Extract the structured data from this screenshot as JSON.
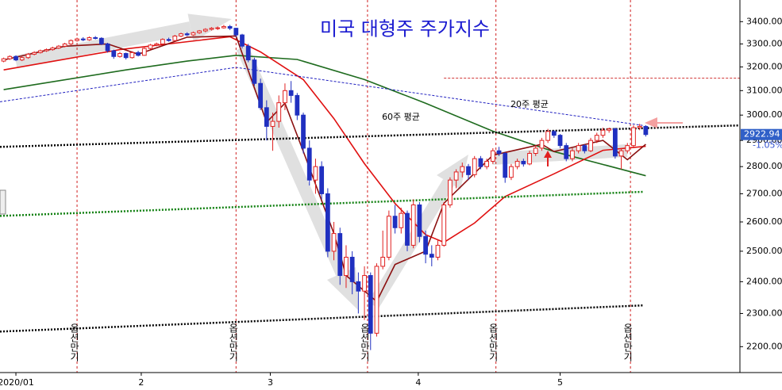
{
  "chart_data": {
    "type": "candlestick",
    "title": "미국 대형주 주가지수",
    "log_scale": true,
    "ylim": [
      2125,
      3500
    ],
    "yticks": [
      {
        "value": 3400,
        "label": "3400.00"
      },
      {
        "value": 3300,
        "label": "3300.00"
      },
      {
        "value": 3200,
        "label": "3200.00"
      },
      {
        "value": 3100,
        "label": "3100.00"
      },
      {
        "value": 3000,
        "label": "3000.00"
      },
      {
        "value": 2900,
        "label": "2900.00"
      },
      {
        "value": 2800,
        "label": "2800.00"
      },
      {
        "value": 2700,
        "label": "2700.00"
      },
      {
        "value": 2600,
        "label": "2600.00"
      },
      {
        "value": 2500,
        "label": "2500.00"
      },
      {
        "value": 2400,
        "label": "2400.00"
      },
      {
        "value": 2300,
        "label": "2300.00"
      },
      {
        "value": 2200,
        "label": "2200.00"
      }
    ],
    "xlim": [
      -0.6,
      120.4
    ],
    "xticks": [
      {
        "value": 2,
        "label": "2020/01"
      },
      {
        "value": 22.5,
        "label": "2"
      },
      {
        "value": 43.6,
        "label": "3"
      },
      {
        "value": 67.8,
        "label": "4"
      },
      {
        "value": 91,
        "label": "5"
      }
    ],
    "up_color": "#e02020",
    "down_color": "#2030c0",
    "candles": [
      [
        3225,
        3240,
        3220,
        3235
      ],
      [
        3235,
        3250,
        3230,
        3245
      ],
      [
        3245,
        3250,
        3225,
        3230
      ],
      [
        3230,
        3245,
        3225,
        3240
      ],
      [
        3240,
        3260,
        3235,
        3255
      ],
      [
        3255,
        3268,
        3250,
        3262
      ],
      [
        3262,
        3275,
        3258,
        3270
      ],
      [
        3270,
        3280,
        3265,
        3275
      ],
      [
        3275,
        3288,
        3270,
        3282
      ],
      [
        3282,
        3295,
        3278,
        3290
      ],
      [
        3290,
        3305,
        3285,
        3300
      ],
      [
        3300,
        3320,
        3295,
        3315
      ],
      [
        3315,
        3328,
        3310,
        3322
      ],
      [
        3322,
        3330,
        3312,
        3318
      ],
      [
        3318,
        3333,
        3314,
        3328
      ],
      [
        3328,
        3335,
        3320,
        3325
      ],
      [
        3325,
        3330,
        3295,
        3300
      ],
      [
        3300,
        3305,
        3262,
        3270
      ],
      [
        3270,
        3275,
        3235,
        3245
      ],
      [
        3245,
        3265,
        3240,
        3258
      ],
      [
        3258,
        3262,
        3232,
        3240
      ],
      [
        3240,
        3268,
        3236,
        3262
      ],
      [
        3262,
        3270,
        3245,
        3250
      ],
      [
        3250,
        3285,
        3248,
        3280
      ],
      [
        3280,
        3300,
        3275,
        3295
      ],
      [
        3295,
        3306,
        3290,
        3300
      ],
      [
        3300,
        3325,
        3296,
        3320
      ],
      [
        3320,
        3328,
        3310,
        3315
      ],
      [
        3315,
        3340,
        3312,
        3335
      ],
      [
        3335,
        3350,
        3330,
        3345
      ],
      [
        3345,
        3352,
        3335,
        3340
      ],
      [
        3340,
        3355,
        3336,
        3350
      ],
      [
        3350,
        3362,
        3345,
        3358
      ],
      [
        3358,
        3370,
        3352,
        3365
      ],
      [
        3365,
        3375,
        3360,
        3370
      ],
      [
        3370,
        3378,
        3362,
        3372
      ],
      [
        3372,
        3385,
        3368,
        3378
      ],
      [
        3378,
        3385,
        3362,
        3370
      ],
      [
        3370,
        3372,
        3330,
        3340
      ],
      [
        3340,
        3345,
        3280,
        3290
      ],
      [
        3290,
        3300,
        3220,
        3230
      ],
      [
        3230,
        3240,
        3120,
        3130
      ],
      [
        3130,
        3150,
        3020,
        3030
      ],
      [
        3030,
        3060,
        2900,
        2955
      ],
      [
        2955,
        3010,
        2860,
        2975
      ],
      [
        2975,
        3080,
        2950,
        3050
      ],
      [
        3050,
        3130,
        3020,
        3100
      ],
      [
        3100,
        3140,
        3050,
        3080
      ],
      [
        3080,
        3090,
        2980,
        3000
      ],
      [
        3000,
        3010,
        2850,
        2870
      ],
      [
        2870,
        2900,
        2730,
        2750
      ],
      [
        2750,
        2830,
        2700,
        2800
      ],
      [
        2800,
        2820,
        2680,
        2700
      ],
      [
        2700,
        2720,
        2480,
        2500
      ],
      [
        2500,
        2600,
        2470,
        2560
      ],
      [
        2560,
        2580,
        2390,
        2420
      ],
      [
        2420,
        2520,
        2380,
        2480
      ],
      [
        2480,
        2500,
        2360,
        2400
      ],
      [
        2400,
        2430,
        2300,
        2370
      ],
      [
        2370,
        2450,
        2280,
        2420
      ],
      [
        2420,
        2430,
        2190,
        2240
      ],
      [
        2240,
        2460,
        2230,
        2450
      ],
      [
        2450,
        2570,
        2440,
        2480
      ],
      [
        2480,
        2640,
        2470,
        2620
      ],
      [
        2620,
        2660,
        2560,
        2580
      ],
      [
        2580,
        2650,
        2560,
        2630
      ],
      [
        2630,
        2640,
        2500,
        2520
      ],
      [
        2520,
        2680,
        2510,
        2660
      ],
      [
        2660,
        2670,
        2530,
        2550
      ],
      [
        2550,
        2570,
        2460,
        2490
      ],
      [
        2490,
        2520,
        2450,
        2480
      ],
      [
        2480,
        2540,
        2470,
        2520
      ],
      [
        2520,
        2670,
        2515,
        2660
      ],
      [
        2660,
        2760,
        2650,
        2750
      ],
      [
        2750,
        2790,
        2720,
        2780
      ],
      [
        2780,
        2815,
        2760,
        2800
      ],
      [
        2800,
        2810,
        2750,
        2770
      ],
      [
        2770,
        2840,
        2760,
        2830
      ],
      [
        2830,
        2840,
        2790,
        2800
      ],
      [
        2800,
        2830,
        2790,
        2820
      ],
      [
        2820,
        2870,
        2810,
        2860
      ],
      [
        2860,
        2875,
        2840,
        2850
      ],
      [
        2850,
        2855,
        2740,
        2760
      ],
      [
        2760,
        2810,
        2750,
        2800
      ],
      [
        2800,
        2830,
        2790,
        2820
      ],
      [
        2820,
        2830,
        2800,
        2810
      ],
      [
        2810,
        2860,
        2805,
        2850
      ],
      [
        2850,
        2880,
        2840,
        2870
      ],
      [
        2870,
        2910,
        2860,
        2900
      ],
      [
        2900,
        2945,
        2890,
        2935
      ],
      [
        2935,
        2940,
        2910,
        2920
      ],
      [
        2920,
        2925,
        2870,
        2880
      ],
      [
        2880,
        2890,
        2820,
        2830
      ],
      [
        2830,
        2870,
        2820,
        2860
      ],
      [
        2860,
        2890,
        2850,
        2880
      ],
      [
        2880,
        2885,
        2850,
        2860
      ],
      [
        2860,
        2910,
        2855,
        2900
      ],
      [
        2900,
        2930,
        2890,
        2920
      ],
      [
        2920,
        2950,
        2910,
        2940
      ],
      [
        2940,
        2950,
        2930,
        2945
      ],
      [
        2945,
        2950,
        2830,
        2840
      ],
      [
        2840,
        2870,
        2790,
        2860
      ],
      [
        2860,
        2890,
        2850,
        2880
      ],
      [
        2880,
        2960,
        2870,
        2950
      ],
      [
        2950,
        2965,
        2940,
        2955
      ],
      [
        2955,
        2960,
        2915,
        2922.94
      ]
    ],
    "change": {
      "value": -1.05,
      "label": "-1.05%"
    },
    "series": [
      {
        "color": "#1e6b1e",
        "style": "solid",
        "x": [
          0,
          20,
          30,
          38,
          48,
          59,
          69,
          80,
          90,
          105
        ],
        "values": [
          3104,
          3187,
          3225,
          3250,
          3232,
          3146,
          3048,
          2936,
          2857,
          2766
        ]
      },
      {
        "color": "#e01010",
        "style": "solid",
        "x": [
          0,
          19,
          37,
          42,
          49,
          54,
          59,
          64,
          69,
          72,
          77,
          82,
          90,
          98,
          105
        ],
        "values": [
          3187,
          3275,
          3332,
          3265,
          3146,
          2986,
          2811,
          2665,
          2556,
          2530,
          2596,
          2690,
          2773,
          2862,
          2877
        ]
      },
      {
        "color": "#8b1010",
        "style": "solid",
        "x": [
          0,
          10,
          17,
          22,
          30,
          38,
          43,
          46,
          49,
          54,
          56,
          61,
          64,
          69,
          72,
          80,
          88,
          90,
          98,
          102,
          105
        ],
        "values": [
          3230,
          3290,
          3300,
          3255,
          3330,
          3335,
          2971,
          3048,
          2858,
          2560,
          2420,
          2337,
          2456,
          2500,
          2666,
          2843,
          2885,
          2857,
          2900,
          2826,
          2885
        ]
      },
      {
        "color": "#2020c0",
        "style": "dash",
        "x": [
          -0.6,
          38,
          104.5
        ],
        "values": [
          3054,
          3198,
          2959
        ]
      },
      {
        "color": "#000000",
        "style": "dotted",
        "x": [
          -0.6,
          120.4
        ],
        "values": [
          2875,
          2959
        ]
      },
      {
        "color": "#108010",
        "style": "dotted",
        "x": [
          -0.6,
          104.5
        ],
        "values": [
          2621,
          2707
        ]
      },
      {
        "color": "#000000",
        "style": "dotted",
        "x": [
          -0.6,
          104.5
        ],
        "values": [
          2245,
          2325
        ]
      },
      {
        "color": "#d03030",
        "style": "dash",
        "x": [
          72,
          120.4
        ],
        "values": [
          3152,
          3152
        ]
      }
    ],
    "labels": [
      "60주 평균",
      "20주 평균"
    ],
    "expiry": {
      "label": "옵션만기",
      "x": [
        12,
        38,
        59.5,
        80.5,
        102.5
      ]
    }
  }
}
